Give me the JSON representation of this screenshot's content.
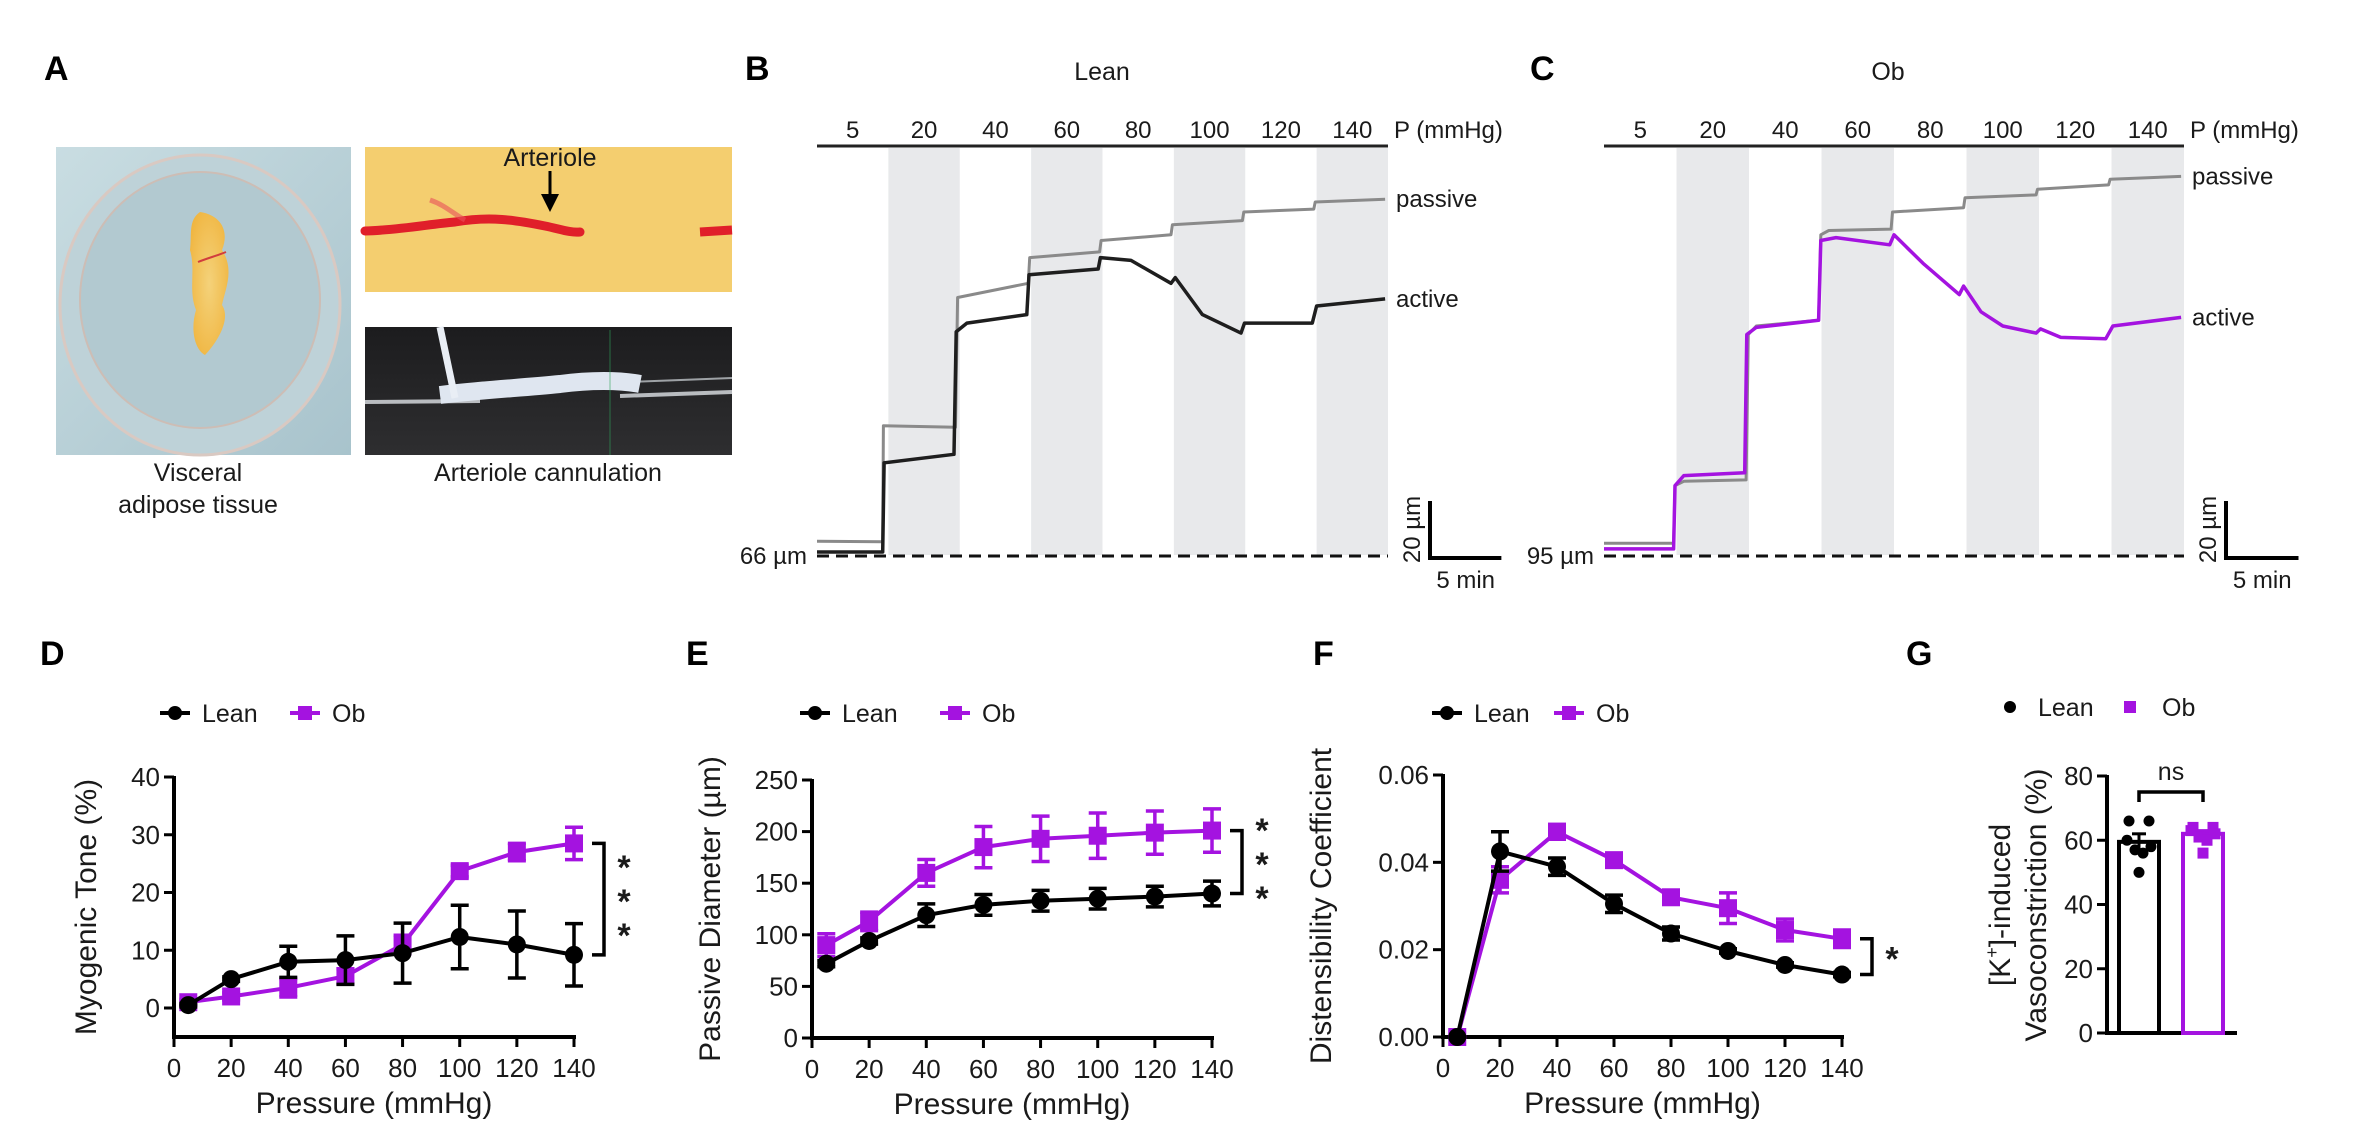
{
  "colors": {
    "lean": "#000000",
    "ob": "#a413e0",
    "passive_trace": "#8a8a8a",
    "active_lean_trace": "#1e1e1e",
    "shade": "#e8e9eb"
  },
  "panel_a": {
    "label": "A",
    "photo_left_caption_line1": "Visceral",
    "photo_left_caption_line2": "adipose tissue",
    "photo_right_top_annotation": "Arteriole",
    "photo_right_caption": "Arteriole cannulation"
  },
  "chart_data": [
    {
      "id": "B",
      "type": "line",
      "panel_label": "B",
      "title": "Lean",
      "pressure_axis_label": "P (mmHg)",
      "pressure_steps": [
        "5",
        "20",
        "40",
        "60",
        "80",
        "100",
        "120",
        "140"
      ],
      "shaded_steps": [
        "20",
        "60",
        "100",
        "140"
      ],
      "baseline_label": "66 µm",
      "scale_bar": {
        "vertical": "20 µm",
        "horizontal": "5 min"
      },
      "series": [
        {
          "name": "passive",
          "label": "passive",
          "note": "diameter above baseline (µm) vs time (min)",
          "points": [
            [
              0,
              4.5
            ],
            [
              4.6,
              4.3
            ],
            [
              4.65,
              45
            ],
            [
              9.7,
              44.5
            ],
            [
              9.85,
              90
            ],
            [
              14.8,
              95
            ],
            [
              14.9,
              104
            ],
            [
              19.8,
              106
            ],
            [
              19.9,
              110
            ],
            [
              24.8,
              112
            ],
            [
              24.9,
              115.5
            ],
            [
              29.8,
              117
            ],
            [
              29.9,
              120
            ],
            [
              34.8,
              121
            ],
            [
              34.9,
              123.5
            ],
            [
              39.8,
              124.5
            ]
          ]
        },
        {
          "name": "active",
          "label": "active",
          "points": [
            [
              0,
              0.7
            ],
            [
              4.6,
              0.7
            ],
            [
              4.7,
              32
            ],
            [
              9.6,
              35
            ],
            [
              9.75,
              78
            ],
            [
              10.5,
              81
            ],
            [
              14.7,
              84
            ],
            [
              14.85,
              98
            ],
            [
              19.7,
              100
            ],
            [
              19.85,
              104
            ],
            [
              22,
              103
            ],
            [
              24.8,
              95
            ],
            [
              25.1,
              97
            ],
            [
              27,
              84
            ],
            [
              29.7,
              77.5
            ],
            [
              29.95,
              81
            ],
            [
              34.7,
              81
            ],
            [
              35,
              87
            ],
            [
              39.8,
              89.5
            ]
          ]
        }
      ]
    },
    {
      "id": "C",
      "type": "line",
      "panel_label": "C",
      "title": "Ob",
      "pressure_axis_label": "P (mmHg)",
      "pressure_steps": [
        "5",
        "20",
        "40",
        "60",
        "80",
        "100",
        "120",
        "140"
      ],
      "shaded_steps": [
        "20",
        "60",
        "100",
        "140"
      ],
      "baseline_label": "95 µm",
      "scale_bar": {
        "vertical": "20 µm",
        "horizontal": "5 min"
      },
      "series": [
        {
          "name": "passive",
          "label": "passive",
          "points": [
            [
              0,
              3.8
            ],
            [
              4.8,
              3.8
            ],
            [
              4.9,
              24
            ],
            [
              5.5,
              25.5
            ],
            [
              9.8,
              26
            ],
            [
              9.95,
              77
            ],
            [
              10.5,
              80
            ],
            [
              14.8,
              82
            ],
            [
              14.95,
              112
            ],
            [
              15.5,
              113.5
            ],
            [
              19.8,
              114
            ],
            [
              19.9,
              120
            ],
            [
              24.8,
              121.5
            ],
            [
              24.9,
              125
            ],
            [
              29.8,
              126
            ],
            [
              29.9,
              128
            ],
            [
              34.8,
              129.5
            ],
            [
              34.9,
              131.5
            ],
            [
              39.8,
              132.5
            ]
          ]
        },
        {
          "name": "active",
          "label": "active",
          "points": [
            [
              0,
              1.8
            ],
            [
              4.8,
              1.8
            ],
            [
              4.9,
              24
            ],
            [
              5.5,
              27.5
            ],
            [
              9.7,
              28.5
            ],
            [
              9.85,
              77
            ],
            [
              10.5,
              79.5
            ],
            [
              14.8,
              82
            ],
            [
              14.95,
              110
            ],
            [
              16,
              111
            ],
            [
              19.7,
              108.5
            ],
            [
              20,
              112
            ],
            [
              22,
              102
            ],
            [
              24.5,
              91
            ],
            [
              24.8,
              94
            ],
            [
              26,
              85
            ],
            [
              27.5,
              80
            ],
            [
              29.8,
              77.5
            ],
            [
              30.1,
              79
            ],
            [
              31.5,
              76
            ],
            [
              34.6,
              75.5
            ],
            [
              35.1,
              80
            ],
            [
              39.8,
              83
            ]
          ]
        }
      ]
    },
    {
      "id": "D",
      "type": "line",
      "panel_label": "D",
      "xlabel": "Pressure (mmHg)",
      "ylabel": "Myogenic Tone (%)",
      "xlim": [
        0,
        140
      ],
      "ylim": [
        -5,
        40
      ],
      "xticks": [
        0,
        20,
        40,
        60,
        80,
        100,
        120,
        140
      ],
      "yticks": [
        0,
        10,
        20,
        30,
        40
      ],
      "legend": [
        "Lean",
        "Ob"
      ],
      "legend_position": "top-left",
      "significance": "***",
      "x": [
        5,
        20,
        40,
        60,
        80,
        100,
        120,
        140
      ],
      "series": [
        {
          "name": "Lean",
          "marker": "circle",
          "values": [
            0.5,
            5,
            8,
            8.3,
            9.5,
            12.3,
            11,
            9.2
          ],
          "err": [
            0.3,
            0.4,
            2.7,
            4.2,
            5.2,
            5.5,
            5.8,
            5.4
          ]
        },
        {
          "name": "Ob",
          "marker": "square",
          "values": [
            1,
            2,
            3.5,
            5.5,
            11,
            23.7,
            27,
            28.5
          ],
          "err": [
            0.5,
            0.6,
            1.6,
            1.3,
            1.6,
            1,
            1.5,
            2.8
          ]
        }
      ]
    },
    {
      "id": "E",
      "type": "line",
      "panel_label": "E",
      "xlabel": "Pressure (mmHg)",
      "ylabel": "Passive Diameter (µm)",
      "xlim": [
        0,
        140
      ],
      "ylim": [
        0,
        250
      ],
      "xticks": [
        0,
        20,
        40,
        60,
        80,
        100,
        120,
        140
      ],
      "yticks": [
        0,
        50,
        100,
        150,
        200,
        250
      ],
      "legend": [
        "Lean",
        "Ob"
      ],
      "legend_position": "top-left",
      "significance": "***",
      "x": [
        5,
        20,
        40,
        60,
        80,
        100,
        120,
        140
      ],
      "series": [
        {
          "name": "Lean",
          "marker": "circle",
          "values": [
            72,
            94,
            119,
            129,
            133,
            135,
            137,
            140
          ],
          "err": [
            3,
            3,
            11,
            10,
            10,
            10,
            10,
            12
          ]
        },
        {
          "name": "Ob",
          "marker": "square",
          "values": [
            90,
            113,
            160,
            185,
            193,
            196,
            199,
            201
          ],
          "err": [
            11,
            9,
            13,
            20,
            22,
            22,
            21,
            21
          ]
        }
      ]
    },
    {
      "id": "F",
      "type": "line",
      "panel_label": "F",
      "xlabel": "Pressure (mmHg)",
      "ylabel": "Distensibility Coefficient",
      "xlim": [
        0,
        140
      ],
      "ylim": [
        0,
        0.06
      ],
      "xticks": [
        0,
        20,
        40,
        60,
        80,
        100,
        120,
        140
      ],
      "yticks": [
        "0.00",
        "0.02",
        "0.04",
        "0.06"
      ],
      "legend": [
        "Lean",
        "Ob"
      ],
      "legend_position": "top-left",
      "significance": "*",
      "x": [
        5,
        20,
        40,
        60,
        80,
        100,
        120,
        140
      ],
      "series": [
        {
          "name": "Lean",
          "marker": "circle",
          "values": [
            0,
            0.0425,
            0.039,
            0.0305,
            0.0237,
            0.0197,
            0.0165,
            0.0143
          ],
          "err": [
            0,
            0.0045,
            0.002,
            0.002,
            0.0015,
            0.0005,
            0.0005,
            0.0005
          ]
        },
        {
          "name": "Ob",
          "marker": "square",
          "values": [
            0,
            0.036,
            0.047,
            0.0405,
            0.032,
            0.0295,
            0.0245,
            0.0225
          ],
          "err": [
            0,
            0.003,
            0.0017,
            0.0006,
            0.001,
            0.0035,
            0.0025,
            0.002
          ]
        }
      ]
    },
    {
      "id": "G",
      "type": "bar",
      "panel_label": "G",
      "ylabel_line1": "[K",
      "ylabel_sup": "+",
      "ylabel_line1_rest": "]-induced",
      "ylabel_line2": "Vasoconstriction (%)",
      "ylim": [
        0,
        80
      ],
      "yticks": [
        0,
        20,
        40,
        60,
        80
      ],
      "legend": [
        "Lean",
        "Ob"
      ],
      "legend_position": "top-left",
      "significance": "ns",
      "categories": [
        "Lean",
        "Ob"
      ],
      "values": [
        59.5,
        62
      ],
      "err": [
        2.5,
        1
      ],
      "points": [
        [
          66,
          66,
          60,
          58,
          57,
          56,
          50
        ],
        [
          64,
          64,
          63,
          62,
          61,
          60,
          56
        ]
      ]
    }
  ]
}
